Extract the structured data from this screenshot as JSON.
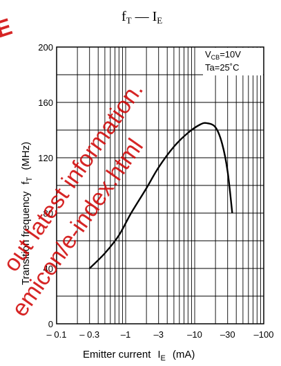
{
  "chart_data": {
    "type": "line",
    "title_main": "f",
    "title_main_sub": "T",
    "title_sep": " — ",
    "title_second": "I",
    "title_second_sub": "E",
    "xlabel_main": "Emitter current",
    "xlabel_symbol": "I",
    "xlabel_symbol_sub": "E",
    "xlabel_unit": "(mA)",
    "ylabel_main": "Transition frequency",
    "ylabel_symbol": "f",
    "ylabel_symbol_sub": "T",
    "ylabel_unit": "(MHz)",
    "x_scale": "log",
    "xlim": [
      -0.1,
      -100
    ],
    "ylim": [
      0,
      200
    ],
    "x_ticks": [
      {
        "value": -0.1,
        "label": "– 0.1"
      },
      {
        "value": -0.3,
        "label": "– 0.3"
      },
      {
        "value": -1,
        "label": "–1"
      },
      {
        "value": -3,
        "label": "–3"
      },
      {
        "value": -10,
        "label": "–10"
      },
      {
        "value": -30,
        "label": "–30"
      },
      {
        "value": -100,
        "label": "–100"
      }
    ],
    "y_ticks": [
      {
        "value": 0,
        "label": "0"
      },
      {
        "value": 40,
        "label": "40"
      },
      {
        "value": 80,
        "label": "80"
      },
      {
        "value": 120,
        "label": "120"
      },
      {
        "value": 160,
        "label": "160"
      },
      {
        "value": 200,
        "label": "200"
      }
    ],
    "conditions": {
      "line1_main": "V",
      "line1_sub": "CB",
      "line1_rest": "=10V",
      "line2": "Ta=25˚C"
    },
    "grid": true,
    "series": [
      {
        "x": [
          -0.3,
          -0.5,
          -0.8,
          -1.2,
          -2,
          -3,
          -5,
          -8,
          -12,
          -15,
          -20,
          -25,
          -30,
          -35
        ],
        "y": [
          40,
          51,
          64,
          80,
          98,
          113,
          128,
          138,
          144,
          145,
          142,
          130,
          110,
          80
        ]
      }
    ]
  },
  "watermark": {
    "large_glyph": "E",
    "line1": "out latest information.",
    "line2": "emicon/e-index.html"
  },
  "colors": {
    "line": "#000000",
    "grid": "#000000",
    "watermark": "#d00000"
  }
}
